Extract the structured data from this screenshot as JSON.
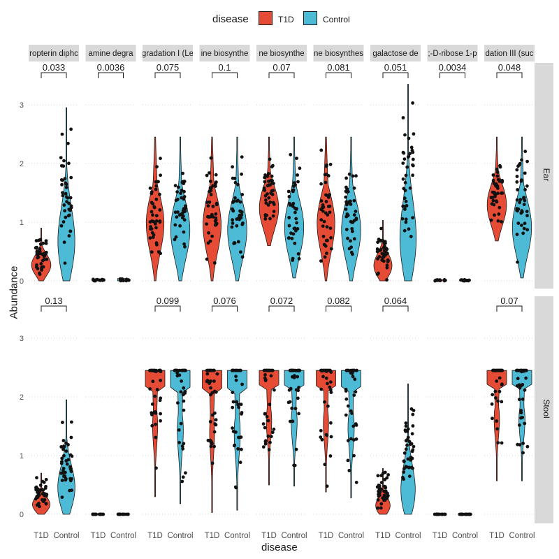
{
  "chart_data": {
    "type": "violin",
    "xlabel": "disease",
    "ylabel": "Abundance",
    "legend": {
      "title": "disease",
      "placement": "top",
      "entries": [
        {
          "name": "T1D",
          "color": "#E64B35"
        },
        {
          "name": "Control",
          "color": "#4DBBD5"
        }
      ]
    },
    "groups": [
      "T1D",
      "Control"
    ],
    "y_ticks": [
      0,
      1,
      2,
      3
    ],
    "ylim": [
      -0.05,
      3.45
    ],
    "grid": true,
    "facets_col": [
      "ropterin diphc",
      "amine degra",
      "gradation I (Le",
      "ine biosynthe",
      "ne biosynthe",
      "ne biosynthes",
      "galactose de",
      ";-D-ribose 1-p",
      "dation III (suc"
    ],
    "facets_row": [
      "Ear",
      "Stool"
    ],
    "pvalues": {
      "Ear": [
        "0.033",
        "0.0036",
        "0.075",
        "0.1",
        "0.07",
        "0.081",
        "0.051",
        "0.0034",
        "0.048"
      ],
      "Stool": [
        "0.13",
        "",
        "0.099",
        "0.076",
        "0.072",
        "0.082",
        "0.064",
        "",
        "0.07"
      ]
    },
    "summary": {
      "Ear": [
        {
          "T1D": {
            "min": 0,
            "max": 0.9,
            "median": 0.25
          },
          "Control": {
            "min": 0,
            "max": 2.95,
            "median": 0.35
          }
        },
        {
          "T1D": {
            "min": 0,
            "max": 0.03,
            "median": 0.01
          },
          "Control": {
            "min": 0,
            "max": 0.04,
            "median": 0.01
          }
        },
        {
          "T1D": {
            "min": 0,
            "max": 2.45,
            "median": 1.2
          },
          "Control": {
            "min": 0,
            "max": 2.45,
            "median": 0.95
          }
        },
        {
          "T1D": {
            "min": 0,
            "max": 2.45,
            "median": 1.15
          },
          "Control": {
            "min": 0,
            "max": 2.45,
            "median": 0.95
          }
        },
        {
          "T1D": {
            "min": 0.6,
            "max": 2.45,
            "median": 1.3
          },
          "Control": {
            "min": 0.05,
            "max": 2.45,
            "median": 1.0
          }
        },
        {
          "T1D": {
            "min": 0,
            "max": 2.45,
            "median": 1.2
          },
          "Control": {
            "min": 0,
            "max": 2.45,
            "median": 0.95
          }
        },
        {
          "T1D": {
            "min": 0,
            "max": 1.03,
            "median": 0.18
          },
          "Control": {
            "min": 0,
            "max": 3.35,
            "median": 0.3
          }
        },
        {
          "T1D": {
            "min": 0,
            "max": 0.02,
            "median": 0.0
          },
          "Control": {
            "min": 0,
            "max": 0.02,
            "median": 0.0
          }
        },
        {
          "T1D": {
            "min": 0.68,
            "max": 2.45,
            "median": 1.35
          },
          "Control": {
            "min": 0.05,
            "max": 2.45,
            "median": 1.0
          }
        }
      ],
      "Stool": [
        {
          "T1D": {
            "min": 0,
            "max": 0.7,
            "median": 0.1
          },
          "Control": {
            "min": 0,
            "max": 1.95,
            "median": 0.25
          }
        },
        {
          "T1D": {
            "min": 0,
            "max": 0.0,
            "median": 0.0
          },
          "Control": {
            "min": 0,
            "max": 0.0,
            "median": 0.0
          }
        },
        {
          "T1D": {
            "min": 0.3,
            "max": 2.45,
            "median": 2.3
          },
          "Control": {
            "min": 0.18,
            "max": 2.45,
            "median": 2.2
          }
        },
        {
          "T1D": {
            "min": 0.03,
            "max": 2.45,
            "median": 2.3
          },
          "Control": {
            "min": 0.07,
            "max": 2.45,
            "median": 2.2
          }
        },
        {
          "T1D": {
            "min": 0.5,
            "max": 2.45,
            "median": 2.3
          },
          "Control": {
            "min": 0.48,
            "max": 2.45,
            "median": 2.25
          }
        },
        {
          "T1D": {
            "min": 0.38,
            "max": 2.45,
            "median": 2.3
          },
          "Control": {
            "min": 0.28,
            "max": 2.45,
            "median": 2.2
          }
        },
        {
          "T1D": {
            "min": 0,
            "max": 0.78,
            "median": 0.02
          },
          "Control": {
            "min": 0,
            "max": 2.22,
            "median": 0.05
          }
        },
        {
          "T1D": {
            "min": 0,
            "max": 0.0,
            "median": 0.0
          },
          "Control": {
            "min": 0,
            "max": 0.0,
            "median": 0.0
          }
        },
        {
          "T1D": {
            "min": 0.57,
            "max": 2.45,
            "median": 2.3
          },
          "Control": {
            "min": 0.57,
            "max": 2.45,
            "median": 2.25
          }
        }
      ]
    }
  }
}
